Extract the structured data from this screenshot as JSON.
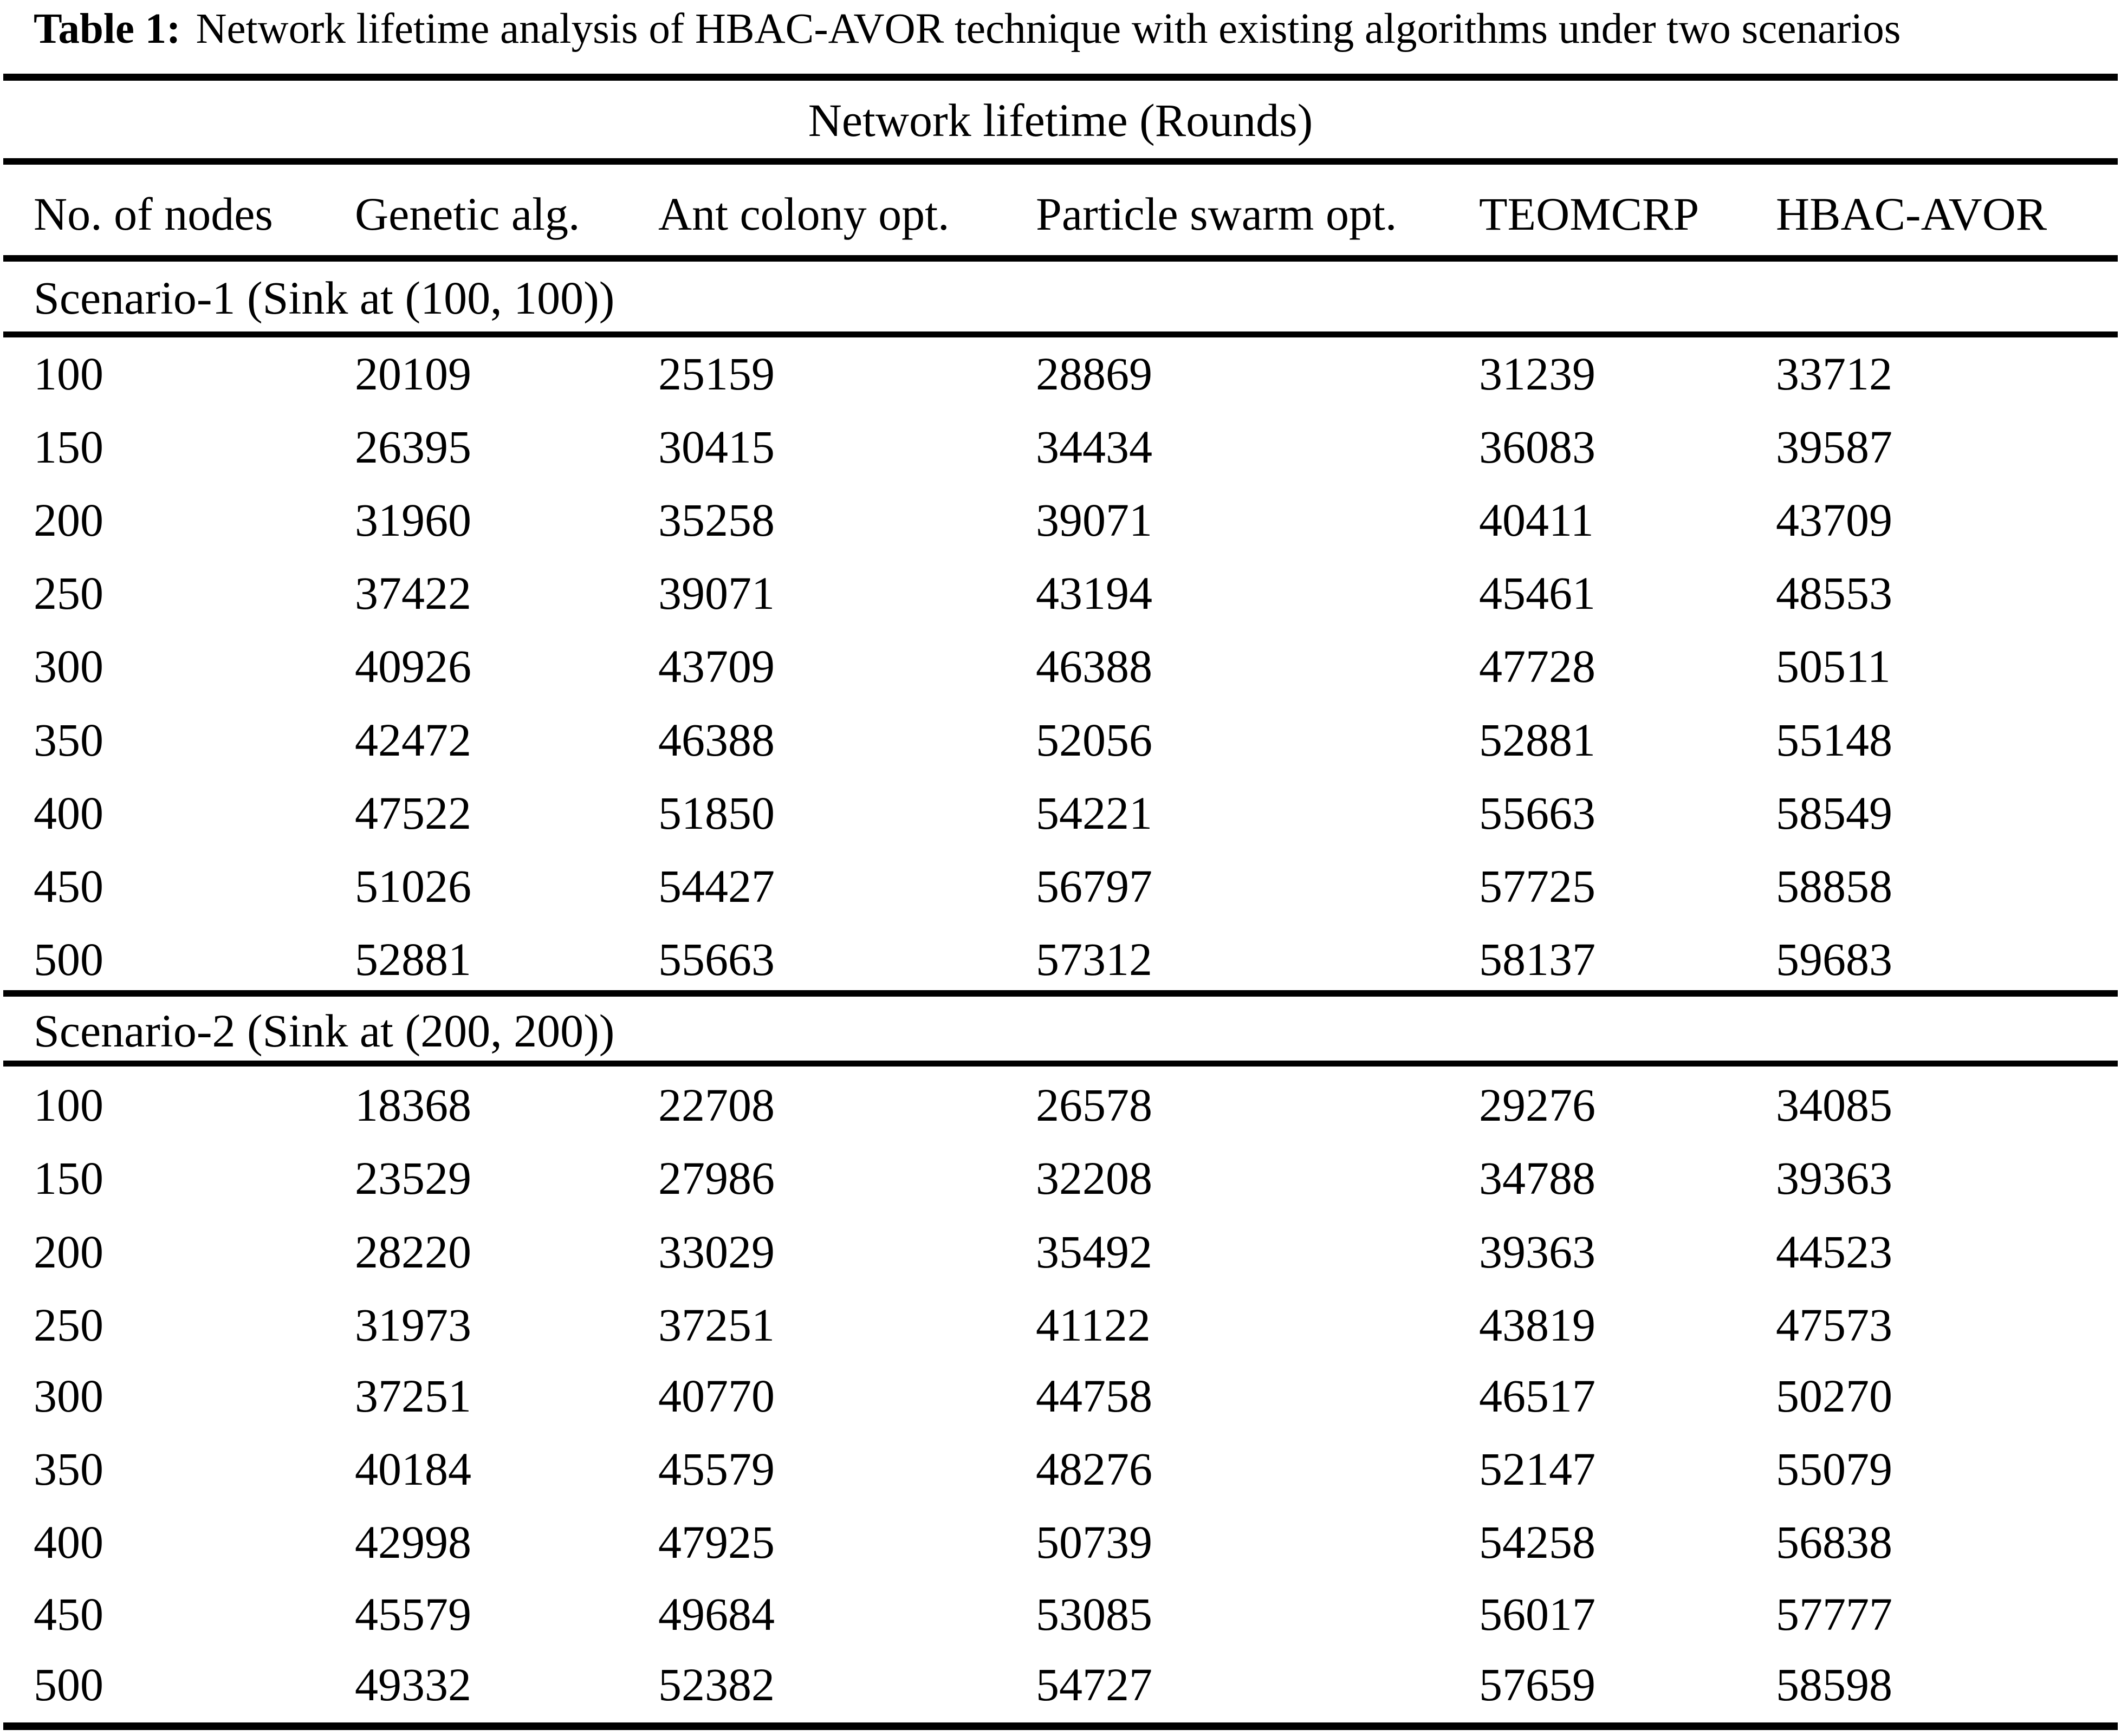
{
  "page": {
    "caption_label": "Table 1:",
    "caption_text": "Network lifetime analysis of HBAC-AVOR technique with existing algorithms under two scenarios"
  },
  "table": {
    "spanner": "Network lifetime (Rounds)",
    "columns": [
      "No. of nodes",
      "Genetic alg.",
      "Ant colony opt.",
      "Particle swarm opt.",
      "TEOMCRP",
      "HBAC-AVOR"
    ],
    "sections": [
      {
        "label": "Scenario-1 (Sink at (100, 100))",
        "rows": [
          [
            "100",
            "20109",
            "25159",
            "28869",
            "31239",
            "33712"
          ],
          [
            "150",
            "26395",
            "30415",
            "34434",
            "36083",
            "39587"
          ],
          [
            "200",
            "31960",
            "35258",
            "39071",
            "40411",
            "43709"
          ],
          [
            "250",
            "37422",
            "39071",
            "43194",
            "45461",
            "48553"
          ],
          [
            "300",
            "40926",
            "43709",
            "46388",
            "47728",
            "50511"
          ],
          [
            "350",
            "42472",
            "46388",
            "52056",
            "52881",
            "55148"
          ],
          [
            "400",
            "47522",
            "51850",
            "54221",
            "55663",
            "58549"
          ],
          [
            "450",
            "51026",
            "54427",
            "56797",
            "57725",
            "58858"
          ],
          [
            "500",
            "52881",
            "55663",
            "57312",
            "58137",
            "59683"
          ]
        ]
      },
      {
        "label": "Scenario-2 (Sink at (200, 200))",
        "rows": [
          [
            "100",
            "18368",
            "22708",
            "26578",
            "29276",
            "34085"
          ],
          [
            "150",
            "23529",
            "27986",
            "32208",
            "34788",
            "39363"
          ],
          [
            "200",
            "28220",
            "33029",
            "35492",
            "39363",
            "44523"
          ],
          [
            "250",
            "31973",
            "37251",
            "41122",
            "43819",
            "47573"
          ],
          [
            "300",
            "37251",
            "40770",
            "44758",
            "46517",
            "50270"
          ],
          [
            "350",
            "40184",
            "45579",
            "48276",
            "52147",
            "55079"
          ],
          [
            "400",
            "42998",
            "47925",
            "50739",
            "54258",
            "56838"
          ],
          [
            "450",
            "45579",
            "49684",
            "53085",
            "56017",
            "57777"
          ],
          [
            "500",
            "49332",
            "52382",
            "54727",
            "57659",
            "58598"
          ]
        ]
      }
    ]
  }
}
